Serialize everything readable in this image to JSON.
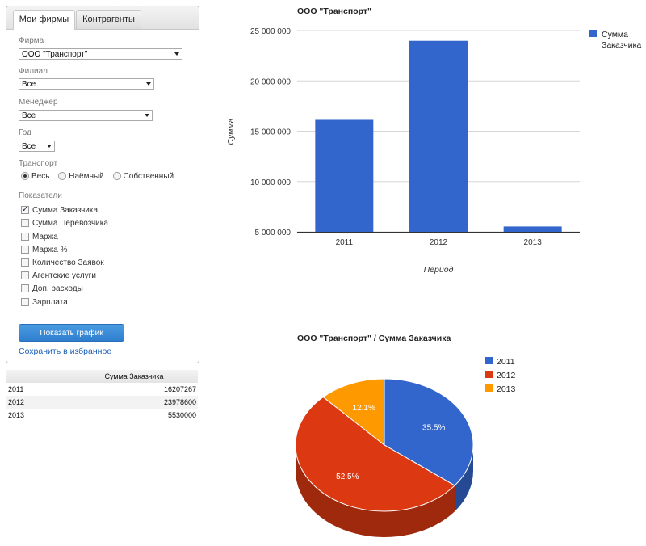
{
  "tabs": [
    {
      "label": "Мои фирмы",
      "active": true
    },
    {
      "label": "Контрагенты",
      "active": false
    }
  ],
  "filters": {
    "firm": {
      "label": "Фирма",
      "value": "ООО \"Транспорт\""
    },
    "branch": {
      "label": "Филиал",
      "value": "Все"
    },
    "manager": {
      "label": "Менеджер",
      "value": "Все"
    },
    "year": {
      "label": "Год",
      "value": "Все"
    },
    "transport": {
      "label": "Транспорт",
      "options": [
        {
          "label": "Весь",
          "selected": true
        },
        {
          "label": "Наёмный",
          "selected": false
        },
        {
          "label": "Собственный",
          "selected": false
        }
      ]
    },
    "indicators": {
      "label": "Показатели",
      "items": [
        {
          "label": "Сумма Заказчика",
          "checked": true
        },
        {
          "label": "Сумма Перевозчика",
          "checked": false
        },
        {
          "label": "Маржа",
          "checked": false
        },
        {
          "label": "Маржа %",
          "checked": false
        },
        {
          "label": "Количество Заявок",
          "checked": false
        },
        {
          "label": "Агентские услуги",
          "checked": false
        },
        {
          "label": "Доп. расходы",
          "checked": false
        },
        {
          "label": "Зарплата",
          "checked": false
        }
      ]
    }
  },
  "actions": {
    "show_chart": "Показать график",
    "save_favorite": "Сохранить в избранное"
  },
  "table": {
    "header": "Сумма Заказчика",
    "rows": [
      {
        "year": "2011",
        "value": "16207267"
      },
      {
        "year": "2012",
        "value": "23978600"
      },
      {
        "year": "2013",
        "value": "5530000"
      }
    ]
  },
  "colors": {
    "blue": "#3366cc",
    "red": "#dc3912",
    "orange": "#ff9900",
    "button": "#3a8bd8",
    "link": "#1d5fb8"
  },
  "chart_data": [
    {
      "type": "bar",
      "title": "ООО \"Транспорт\"",
      "xlabel": "Период",
      "ylabel": "Сумма",
      "categories": [
        "2011",
        "2012",
        "2013"
      ],
      "series": [
        {
          "name": "Сумма Заказчика",
          "values": [
            16207267,
            23978600,
            5530000
          ],
          "color": "#3366cc"
        }
      ],
      "ylim": [
        5000000,
        25000000
      ],
      "yticks": [
        5000000,
        10000000,
        15000000,
        20000000,
        25000000
      ],
      "ytick_labels": [
        "5 000 000",
        "10 000 000",
        "15 000 000",
        "20 000 000",
        "25 000 000"
      ],
      "legend_lines": [
        "Сумма",
        "Заказчика"
      ],
      "grid": true,
      "legend": "right"
    },
    {
      "type": "pie",
      "title": "ООО \"Транспорт\" / Сумма Заказчика",
      "categories": [
        "2011",
        "2012",
        "2013"
      ],
      "values": [
        16207267,
        23978600,
        5530000
      ],
      "labels": [
        "35.5%",
        "52.5%",
        "12.1%"
      ],
      "colors": [
        "#3366cc",
        "#dc3912",
        "#ff9900"
      ],
      "legend": "top-right"
    }
  ]
}
